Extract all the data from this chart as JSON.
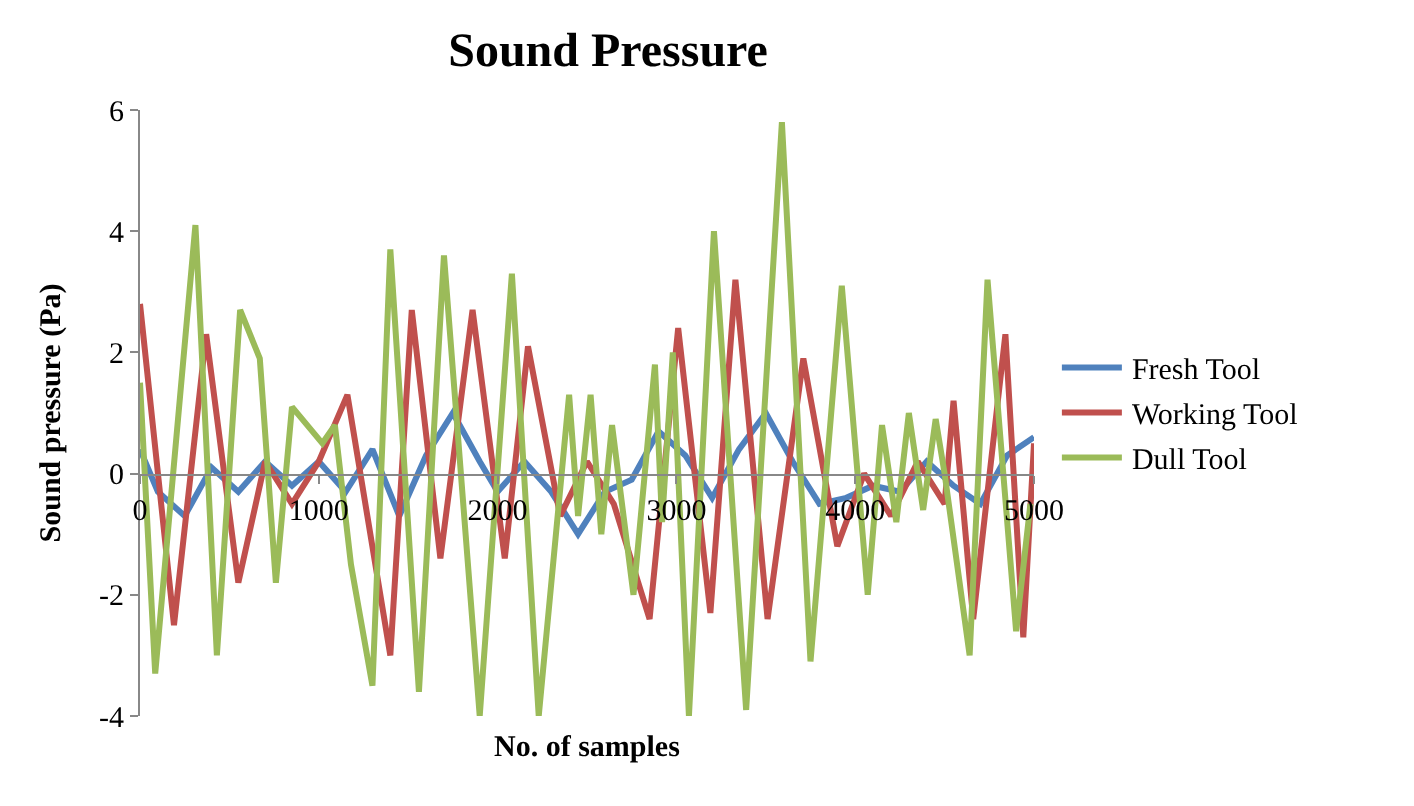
{
  "chart_data": {
    "type": "line",
    "title": "Sound Pressure",
    "xlabel": "No. of samples",
    "ylabel": "Sound pressure (Pa)",
    "xlim": [
      0,
      5000
    ],
    "xticks": [
      0,
      1000,
      2000,
      3000,
      4000,
      5000
    ],
    "ylim": [
      -4,
      6
    ],
    "yticks": [
      -4,
      -2,
      0,
      2,
      4,
      6
    ],
    "grid": false,
    "legend": "right",
    "marker": "none",
    "line_style": "solid",
    "series": [
      {
        "name": "Fresh Tool",
        "color": "#4f81bd",
        "x": [
          0,
          100,
          250,
          400,
          550,
          700,
          850,
          1000,
          1150,
          1300,
          1450,
          1600,
          1750,
          1900,
          2000,
          2150,
          2300,
          2450,
          2600,
          2750,
          2900,
          3050,
          3200,
          3350,
          3500,
          3650,
          3800,
          3950,
          4100,
          4250,
          4400,
          4550,
          4700,
          4850,
          5000
        ],
        "values": [
          0.4,
          -0.3,
          -0.7,
          0.1,
          -0.3,
          0.2,
          -0.2,
          0.2,
          -0.3,
          0.4,
          -0.7,
          0.3,
          1.0,
          0.2,
          -0.3,
          0.2,
          -0.3,
          -1.0,
          -0.3,
          -0.1,
          0.7,
          0.3,
          -0.4,
          0.4,
          1.0,
          0.2,
          -0.5,
          -0.4,
          -0.2,
          -0.3,
          0.2,
          -0.2,
          -0.5,
          0.3,
          0.6
        ]
      },
      {
        "name": "Working Tool",
        "color": "#c0504d",
        "x": [
          0,
          190,
          370,
          550,
          700,
          850,
          1000,
          1160,
          1400,
          1520,
          1680,
          1860,
          2040,
          2170,
          2350,
          2500,
          2650,
          2850,
          3010,
          3190,
          3330,
          3510,
          3710,
          3900,
          4050,
          4200,
          4350,
          4500,
          4550,
          4660,
          4840,
          4940,
          5000
        ],
        "values": [
          2.8,
          -2.5,
          2.3,
          -1.8,
          0.2,
          -0.5,
          0.2,
          1.3,
          -3.0,
          2.7,
          -1.4,
          2.7,
          -1.4,
          2.1,
          -0.7,
          0.2,
          -0.5,
          -2.4,
          2.4,
          -2.3,
          3.2,
          -2.4,
          1.9,
          -1.2,
          0.0,
          -0.7,
          0.2,
          -0.5,
          1.2,
          -2.4,
          2.3,
          -2.7,
          0.5
        ]
      },
      {
        "name": "Dull Tool",
        "color": "#9bbb59",
        "x": [
          0,
          85,
          310,
          430,
          560,
          670,
          760,
          850,
          1020,
          1090,
          1180,
          1300,
          1400,
          1560,
          1700,
          1900,
          2080,
          2230,
          2400,
          2450,
          2520,
          2580,
          2640,
          2760,
          2880,
          2920,
          2980,
          3070,
          3210,
          3390,
          3590,
          3750,
          3925,
          4070,
          4150,
          4230,
          4300,
          4380,
          4450,
          4500,
          4640,
          4740,
          4900,
          4980
        ],
        "values": [
          1.5,
          -3.3,
          4.1,
          -3.0,
          2.7,
          1.9,
          -1.8,
          1.1,
          0.5,
          0.8,
          -1.5,
          -3.5,
          3.7,
          -3.6,
          3.6,
          -4.0,
          3.3,
          -4.0,
          1.3,
          -0.7,
          1.3,
          -1.0,
          0.8,
          -2.0,
          1.8,
          -0.8,
          2.0,
          -4.0,
          4.0,
          -3.9,
          5.8,
          -3.1,
          3.1,
          -2.0,
          0.8,
          -0.8,
          1.0,
          -0.6,
          0.9,
          0.0,
          -3.0,
          3.2,
          -2.6,
          -0.5
        ]
      }
    ]
  }
}
